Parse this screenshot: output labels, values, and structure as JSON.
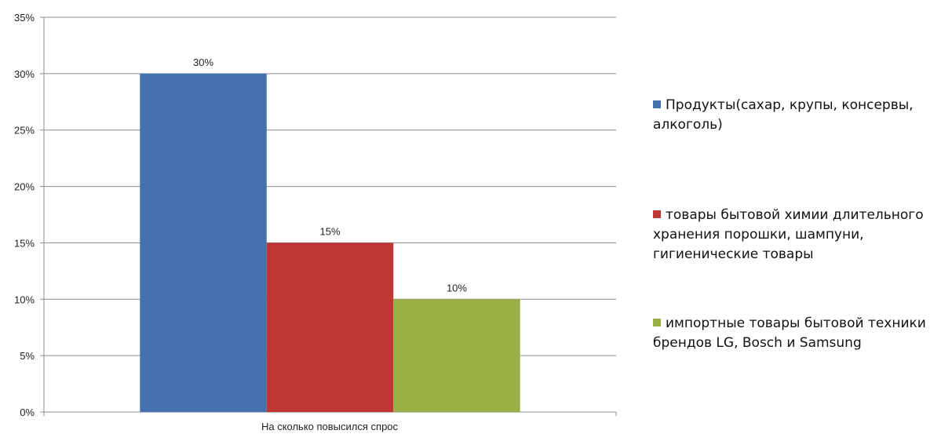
{
  "chart_data": {
    "type": "bar",
    "categories": [
      "На сколько повысился спрос"
    ],
    "series": [
      {
        "name": "Продукты(сахар, крупы, консервы, алкоголь)",
        "values": [
          30
        ],
        "color": "#4472AE",
        "label": "30%"
      },
      {
        "name": "товары бытовой химии  длительного хранения порошки, шампуни, гигиенические товары",
        "values": [
          15
        ],
        "color": "#BE3734",
        "label": "15%"
      },
      {
        "name": "импортные товары бытовой техники брендов LG, Bosch и Samsung",
        "values": [
          10
        ],
        "color": "#98B045",
        "label": "10%"
      }
    ],
    "y_ticks": [
      "0%",
      "5%",
      "10%",
      "15%",
      "20%",
      "25%",
      "30%",
      "35%"
    ],
    "ylim": [
      0,
      35
    ],
    "grid": true,
    "legend_position": "right"
  }
}
